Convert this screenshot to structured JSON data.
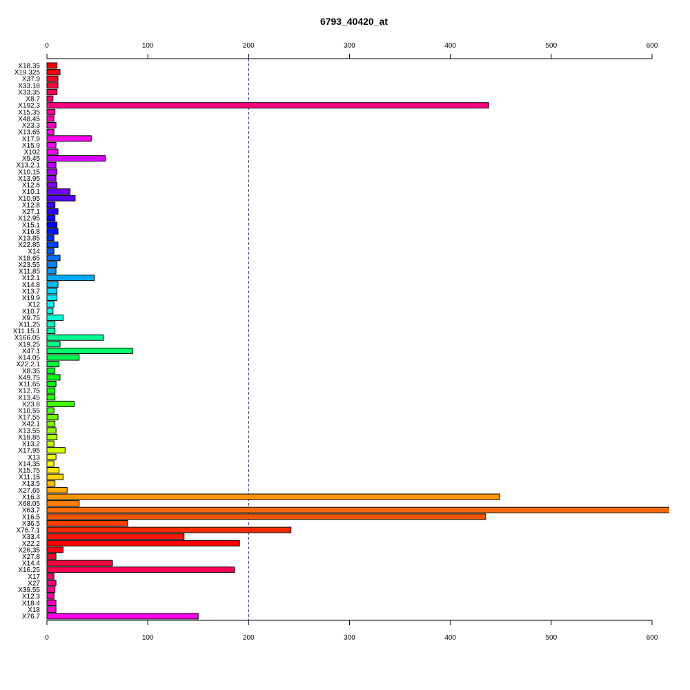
{
  "chart_data": {
    "type": "bar",
    "orientation": "horizontal",
    "title": "6793_40420_at",
    "xlabel": "",
    "ylabel": "",
    "xlim": [
      0,
      600
    ],
    "xticks": [
      0,
      100,
      200,
      300,
      400,
      500,
      600
    ],
    "axis_top": true,
    "axis_bottom": true,
    "reference_line": {
      "x": 200,
      "style": "dashed",
      "color": "#1a1a80"
    },
    "color_scheme": "rainbow",
    "categories": [
      "X18.35",
      "X19.325",
      "X37.9",
      "X33.18",
      "X33.35",
      "X8.7",
      "X192.3",
      "X15.35",
      "X48.45",
      "X23.3",
      "X13.65",
      "X17.9",
      "X15.9",
      "X102",
      "X9.45",
      "X13.2.1",
      "X10.15",
      "X13.95",
      "X12.6",
      "X10.1",
      "X10.95",
      "X12.8",
      "X27.1",
      "X12.95",
      "X15.1",
      "X16.8",
      "X13.85",
      "X22.85",
      "X14",
      "X18.65",
      "X23.55",
      "X11.85",
      "X12.1",
      "X14.8",
      "X13.7",
      "X19.9",
      "X12",
      "X10.7",
      "X9.75",
      "X11.25",
      "X11.15.1",
      "X166.05",
      "X19.25",
      "X47.1",
      "X14.05",
      "X22.2.1",
      "X8.35",
      "X49.75",
      "X11.65",
      "X12.75",
      "X13.45",
      "X23.8",
      "X10.55",
      "X17.55",
      "X42.1",
      "X13.55",
      "X18.85",
      "X13.2",
      "X17.95",
      "X13",
      "X14.35",
      "X15.75",
      "X11.15",
      "X13.5",
      "X27.65",
      "X16.3",
      "X68.05",
      "X63.7",
      "X16.5",
      "X36.5",
      "X76.7.1",
      "X33.4",
      "X22.2",
      "X26.35",
      "X27.8",
      "X14.4",
      "X16.25",
      "X17",
      "X27",
      "X39.55",
      "X12.3",
      "X18.4",
      "X18",
      "X76.7"
    ],
    "values": [
      10,
      13,
      11,
      11,
      10,
      6,
      438,
      8,
      7,
      9,
      7,
      44,
      9,
      11,
      58,
      9,
      10,
      9,
      10,
      23,
      28,
      8,
      11,
      8,
      10,
      11,
      7,
      11,
      7,
      13,
      10,
      9,
      47,
      11,
      10,
      10,
      7,
      6,
      16,
      8,
      8,
      56,
      13,
      85,
      32,
      12,
      8,
      13,
      9,
      8,
      8,
      27,
      7,
      11,
      8,
      9,
      10,
      7,
      18,
      9,
      7,
      12,
      16,
      8,
      20,
      449,
      32,
      620,
      435,
      80,
      242,
      136,
      191,
      16,
      9,
      65,
      186,
      7,
      9,
      8,
      7,
      9,
      9,
      150
    ],
    "colors": [
      "#ff0000",
      "#ff0015",
      "#ff002b",
      "#ff0040",
      "#ff0055",
      "#ff006b",
      "#ff0080",
      "#ff0095",
      "#ff00aa",
      "#ff00bf",
      "#ff00d5",
      "#ff00ea",
      "#ff00ff",
      "#ea00ff",
      "#d500ff",
      "#bf00ff",
      "#aa00ff",
      "#9500ff",
      "#8000ff",
      "#6b00ff",
      "#5500ff",
      "#4000ff",
      "#2b00ff",
      "#1500ff",
      "#0000ff",
      "#0015ff",
      "#002bff",
      "#0040ff",
      "#0055ff",
      "#006bff",
      "#0080ff",
      "#0095ff",
      "#00aaff",
      "#00bfff",
      "#00d5ff",
      "#00eaff",
      "#00ffff",
      "#00ffea",
      "#00ffd5",
      "#00ffbf",
      "#00ffaa",
      "#00ff95",
      "#00ff80",
      "#00ff6b",
      "#00ff55",
      "#00ff40",
      "#00ff2b",
      "#00ff15",
      "#00ff00",
      "#15ff00",
      "#2bff00",
      "#40ff00",
      "#55ff00",
      "#6bff00",
      "#80ff00",
      "#95ff00",
      "#aaff00",
      "#bfff00",
      "#d5ff00",
      "#eaff00",
      "#ffff00",
      "#ffea00",
      "#ffd500",
      "#ffbf00",
      "#ffaa00",
      "#ff9500",
      "#ff8000",
      "#ff6b00",
      "#ff5500",
      "#ff4000",
      "#ff2b00",
      "#ff1500",
      "#ff0000",
      "#ff0015",
      "#ff002b",
      "#ff0040",
      "#ff0055",
      "#ff006b",
      "#ff0080",
      "#ff0095",
      "#ff00aa",
      "#ff00bf",
      "#ff00d5",
      "#ff00ea"
    ]
  }
}
